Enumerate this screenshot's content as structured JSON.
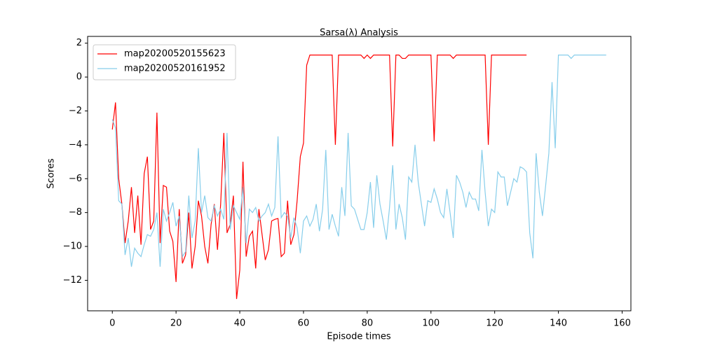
{
  "chart_data": {
    "type": "line",
    "title": "Sarsa(λ) Analysis",
    "x_label": "Episode times",
    "y_label": "Scores",
    "x": [
      0,
      1,
      2,
      3,
      4,
      5,
      6,
      7,
      8,
      9,
      10,
      11,
      12,
      13,
      14,
      15,
      16,
      17,
      18,
      19,
      20,
      21,
      22,
      23,
      24,
      25,
      26,
      27,
      28,
      29,
      30,
      31,
      32,
      33,
      34,
      35,
      36,
      37,
      38,
      39,
      40,
      41,
      42,
      43,
      44,
      45,
      46,
      47,
      48,
      49,
      50,
      51,
      52,
      53,
      54,
      55,
      56,
      57,
      58,
      59,
      60,
      61,
      62,
      63,
      64,
      65,
      66,
      67,
      68,
      69,
      70,
      71,
      72,
      73,
      74,
      75,
      76,
      77,
      78,
      79,
      80,
      81,
      82,
      83,
      84,
      85,
      86,
      87,
      88,
      89,
      90,
      91,
      92,
      93,
      94,
      95,
      96,
      97,
      98,
      99,
      100,
      101,
      102,
      103,
      104,
      105,
      106,
      107,
      108,
      109,
      110,
      111,
      112,
      113,
      114,
      115,
      116,
      117,
      118,
      119,
      120,
      121,
      122,
      123,
      124,
      125,
      126,
      127,
      128,
      129,
      130,
      131,
      132,
      133,
      134,
      135,
      136,
      137,
      138,
      139,
      140,
      141,
      142,
      143,
      144,
      145,
      146,
      147,
      148,
      149,
      150,
      151,
      152,
      153,
      154,
      155
    ],
    "series": [
      {
        "name": "map20200520155623",
        "color": "#ff0000",
        "values": [
          -3.1,
          -1.5,
          -6,
          -7.5,
          -9.8,
          -8.5,
          -6.5,
          -9.2,
          -7,
          -9.9,
          -5.7,
          -4.7,
          -9,
          -8.5,
          -2.1,
          -9.8,
          -6.4,
          -6.5,
          -9.1,
          -9.7,
          -12.1,
          -7.8,
          -11,
          -10.5,
          -8,
          -11.3,
          -10,
          -7.3,
          -8.2,
          -10,
          -11,
          -8.7,
          -7.5,
          -10.2,
          -7.5,
          -3.3,
          -9.2,
          -8.7,
          -7,
          -13.1,
          -11.4,
          -5,
          -10.6,
          -9.4,
          -9.1,
          -11.3,
          -7.8,
          -9.3,
          -10.8,
          -10.2,
          -8.5,
          -8.4,
          -8.35,
          -10.6,
          -10.4,
          -7.3,
          -9.9,
          -9.3,
          -7.3,
          -4.7,
          -3.9,
          0.7,
          1.3,
          1.3,
          1.3,
          1.3,
          1.3,
          1.3,
          1.3,
          1.3,
          -4,
          1.3,
          1.3,
          1.3,
          1.3,
          1.3,
          1.3,
          1.3,
          1.3,
          1.1,
          1.3,
          1.1,
          1.3,
          1.3,
          1.3,
          1.3,
          1.3,
          1.3,
          -4.1,
          1.3,
          1.3,
          1.1,
          1.1,
          1.3,
          1.3,
          1.3,
          1.3,
          1.3,
          1.3,
          1.3,
          1.3,
          -3.8,
          1.3,
          1.3,
          1.3,
          1.3,
          1.3,
          1.1,
          1.3,
          1.3,
          1.3,
          1.3,
          1.3,
          1.3,
          1.3,
          1.3,
          1.3,
          1.3,
          -4,
          1.3,
          1.3,
          1.3,
          1.3,
          1.3,
          1.3,
          1.3,
          1.3,
          1.3,
          1.3,
          1.3,
          1.3,
          null,
          null,
          null,
          null,
          null,
          null,
          null,
          null,
          null,
          null,
          null,
          null,
          null,
          null,
          null,
          null,
          null,
          null,
          null,
          null,
          null,
          null,
          null,
          null,
          null
        ]
      },
      {
        "name": "map20200520161952",
        "color": "#87ceeb",
        "values": [
          -2.5,
          -3,
          -7.3,
          -7.5,
          -10.5,
          -9.5,
          -11.2,
          -10.1,
          -10.4,
          -10.6,
          -9.9,
          -9.3,
          -9.4,
          -9,
          -8,
          -11.2,
          -7.8,
          -8.5,
          -8,
          -7.4,
          -8.8,
          -8.2,
          -10.6,
          -10.3,
          -7,
          -9.5,
          -8.5,
          -4.2,
          -8,
          -7,
          -8.3,
          -8.5,
          -7.6,
          -8.2,
          -7.8,
          -8.4,
          -3.3,
          -9,
          -7.6,
          -8,
          -8.4,
          -6.5,
          -9.8,
          -7.8,
          -8,
          -7.7,
          -8.5,
          -8.2,
          -8,
          -7.5,
          -8.2,
          -7.7,
          -3.5,
          -8.3,
          -8,
          -8.2,
          -9.5,
          -8.3,
          -8.9,
          -10.4,
          -8.5,
          -8.2,
          -8.8,
          -8.4,
          -7.5,
          -9.1,
          -7.8,
          -4.3,
          -9,
          -8.1,
          -8.8,
          -9.4,
          -6.5,
          -8.2,
          -3.3,
          -7.6,
          -7.8,
          -8.4,
          -9,
          -9,
          -8,
          -6.2,
          -8.9,
          -5.8,
          -7.5,
          -8.5,
          -9.6,
          -7.7,
          -5.2,
          -9,
          -7.5,
          -8.3,
          -9.6,
          -5.9,
          -6.2,
          -4,
          -6.2,
          -7.5,
          -8.8,
          -7.3,
          -7.4,
          -6.6,
          -7.2,
          -8,
          -8.3,
          -6.6,
          -8,
          -9.5,
          -5.8,
          -6.2,
          -6.8,
          -7.7,
          -6.8,
          -7.2,
          -7.2,
          -7.9,
          -4.3,
          -6.8,
          -8.8,
          -7.8,
          -8,
          -5.6,
          -5.9,
          -5.9,
          -7.6,
          -6.8,
          -6,
          -6.2,
          -5.3,
          -5.4,
          -5.6,
          -9.2,
          -10.7,
          -4.5,
          -6.8,
          -8.2,
          -6.4,
          -4.5,
          -0.3,
          -4.2,
          1.3,
          1.3,
          1.3,
          1.3,
          1.1,
          1.3,
          1.3,
          1.3,
          1.3,
          1.3,
          1.3,
          1.3,
          1.3,
          1.3,
          1.3,
          1.3
        ]
      }
    ],
    "xlim": [
      -7.75,
      162.75
    ],
    "ylim": [
      -13.8,
      2.4
    ],
    "xticks": [
      0,
      20,
      40,
      60,
      80,
      100,
      120,
      140,
      160
    ],
    "yticks": [
      {
        "value": -12,
        "label": "−12"
      },
      {
        "value": -10,
        "label": "−10"
      },
      {
        "value": -8,
        "label": "−8"
      },
      {
        "value": -6,
        "label": "−6"
      },
      {
        "value": -4,
        "label": "−4"
      },
      {
        "value": -2,
        "label": "−2"
      },
      0,
      2
    ],
    "legend": "upper left"
  }
}
